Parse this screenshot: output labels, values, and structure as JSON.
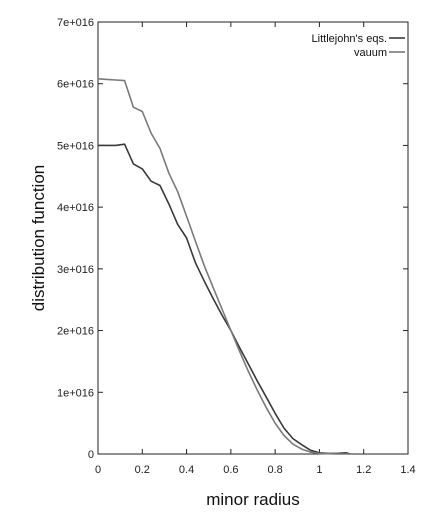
{
  "chart_data": {
    "type": "line",
    "title": "",
    "xlabel": "minor radius",
    "ylabel": "distribution function",
    "xlim": [
      0,
      1.4
    ],
    "ylim": [
      0,
      7e+16
    ],
    "x_ticks": [
      0,
      0.2,
      0.4,
      0.6,
      0.8,
      1,
      1.2,
      1.4
    ],
    "x_tick_labels": [
      "0",
      "0.2",
      "0.4",
      "0.6",
      "0.8",
      "1",
      "1.2",
      "1.4"
    ],
    "y_ticks": [
      0,
      1e+16,
      2e+16,
      3e+16,
      4e+16,
      5e+16,
      6e+16,
      7e+16
    ],
    "y_tick_labels": [
      "0",
      "1e+016",
      "2e+016",
      "3e+016",
      "4e+016",
      "5e+016",
      "6e+016",
      "7e+016"
    ],
    "legend_position": "top-right",
    "grid": false,
    "series": [
      {
        "name": "Littlejohn's eqs.",
        "color": "#3a3a3a",
        "x": [
          0,
          0.04,
          0.08,
          0.12,
          0.16,
          0.2,
          0.24,
          0.28,
          0.32,
          0.36,
          0.4,
          0.44,
          0.48,
          0.52,
          0.56,
          0.6,
          0.64,
          0.68,
          0.72,
          0.76,
          0.8,
          0.84,
          0.88,
          0.92,
          0.96,
          1.0,
          1.04,
          1.08,
          1.12,
          1.14
        ],
        "y": [
          5e+16,
          5e+16,
          5e+16,
          5.02e+16,
          4.7e+16,
          4.62e+16,
          4.42e+16,
          4.35e+16,
          4.05e+16,
          3.72e+16,
          3.5e+16,
          3.1e+16,
          2.8e+16,
          2.52e+16,
          2.25e+16,
          2e+16,
          1.72e+16,
          1.45e+16,
          1.18e+16,
          9200000000000000.0,
          6600000000000000.0,
          4200000000000000.0,
          2500000000000000.0,
          1500000000000000.0,
          600000000000000.0,
          200000000000000.0,
          100000000000000.0,
          100000000000000.0,
          200000000000000.0,
          0.0
        ]
      },
      {
        "name": "vauum",
        "color": "#7a7a7a",
        "x": [
          0,
          0.04,
          0.08,
          0.12,
          0.16,
          0.2,
          0.24,
          0.28,
          0.32,
          0.36,
          0.4,
          0.44,
          0.48,
          0.52,
          0.56,
          0.6,
          0.64,
          0.68,
          0.72,
          0.76,
          0.8,
          0.84,
          0.88,
          0.92,
          0.96,
          1.0,
          1.04,
          1.08,
          1.12,
          1.14
        ],
        "y": [
          6.08e+16,
          6.07e+16,
          6.06e+16,
          6.05e+16,
          5.62e+16,
          5.55e+16,
          5.2e+16,
          4.95e+16,
          4.55e+16,
          4.25e+16,
          3.85e+16,
          3.45e+16,
          3.05e+16,
          2.7e+16,
          2.35e+16,
          2e+16,
          1.66e+16,
          1.33e+16,
          1.03e+16,
          7500000000000000.0,
          5000000000000000.0,
          3000000000000000.0,
          1600000000000000.0,
          800000000000000.0,
          300000000000000.0,
          100000000000000.0,
          50000000000000.0,
          0.0,
          0.0,
          0.0
        ]
      }
    ]
  }
}
